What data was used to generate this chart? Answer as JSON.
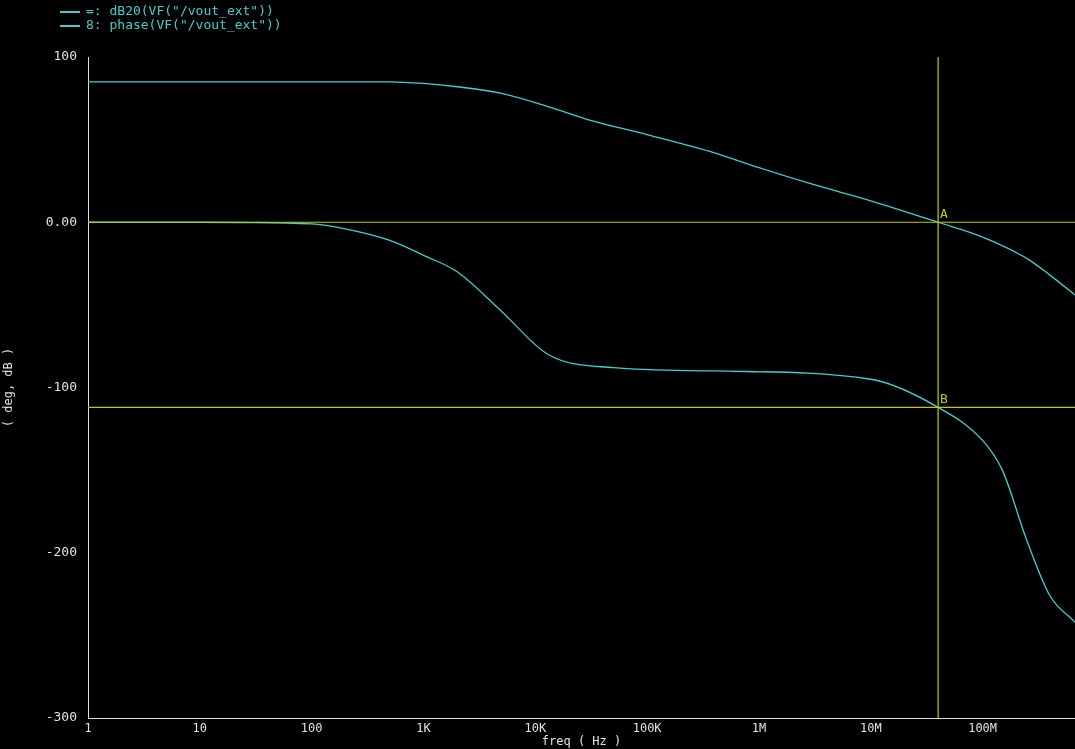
{
  "chart_data": {
    "type": "line",
    "xlabel": "freq ( Hz )",
    "ylabel": "( deg, dB )",
    "log": "x",
    "legend": "top left",
    "xlim": [
      1,
      670000000
    ],
    "xticks": [
      1,
      10,
      100,
      {
        "value": 1000,
        "label": "1K"
      },
      {
        "value": 10000,
        "label": "10K"
      },
      {
        "value": 100000,
        "label": "100K"
      },
      {
        "value": 1000000,
        "label": "1M"
      },
      {
        "value": 10000000,
        "label": "10M"
      },
      {
        "value": 100000000,
        "label": "100M"
      }
    ],
    "ylim": [
      -300,
      100
    ],
    "yticks": [
      -300,
      -200,
      -100,
      {
        "value": 0,
        "label": "0.00"
      },
      100
    ],
    "series": [
      {
        "name": "=: dB20(VF(\"/vout_ext\"))",
        "color": "#3fd0d0",
        "x": [
          1,
          10,
          100,
          500,
          1000,
          2000,
          5000,
          13000,
          30000,
          100000,
          400000,
          1000000,
          3000000,
          10000000,
          40000000,
          100000000,
          250000000,
          400000000,
          670000000
        ],
        "values": [
          85,
          85,
          85,
          85,
          84,
          82,
          78,
          70,
          62,
          53,
          42,
          33,
          23,
          13,
          0,
          -9,
          -22,
          -32,
          -44
        ]
      },
      {
        "name": "8: phase(VF(\"/vout_ext\"))",
        "color": "#3fd0d0",
        "x": [
          1,
          10,
          100,
          200,
          500,
          1000,
          2000,
          5000,
          13000,
          50000,
          400000,
          10000000,
          40000000,
          100000000,
          150000000,
          250000000,
          400000000,
          670000000
        ],
        "values": [
          0,
          0,
          -1,
          -4,
          -11,
          -20,
          -30,
          -54,
          -80,
          -88,
          -90,
          -95,
          -112,
          -132,
          -150,
          -193,
          -226,
          -242
        ]
      }
    ],
    "ref_lines": [
      {
        "axis": "y",
        "value": 0,
        "label": "A",
        "color": "#c8c800"
      },
      {
        "axis": "y",
        "value": -112,
        "label": "B",
        "color": "#c8c800"
      },
      {
        "axis": "x",
        "value": 40000000,
        "color": "#c8c800"
      }
    ]
  }
}
